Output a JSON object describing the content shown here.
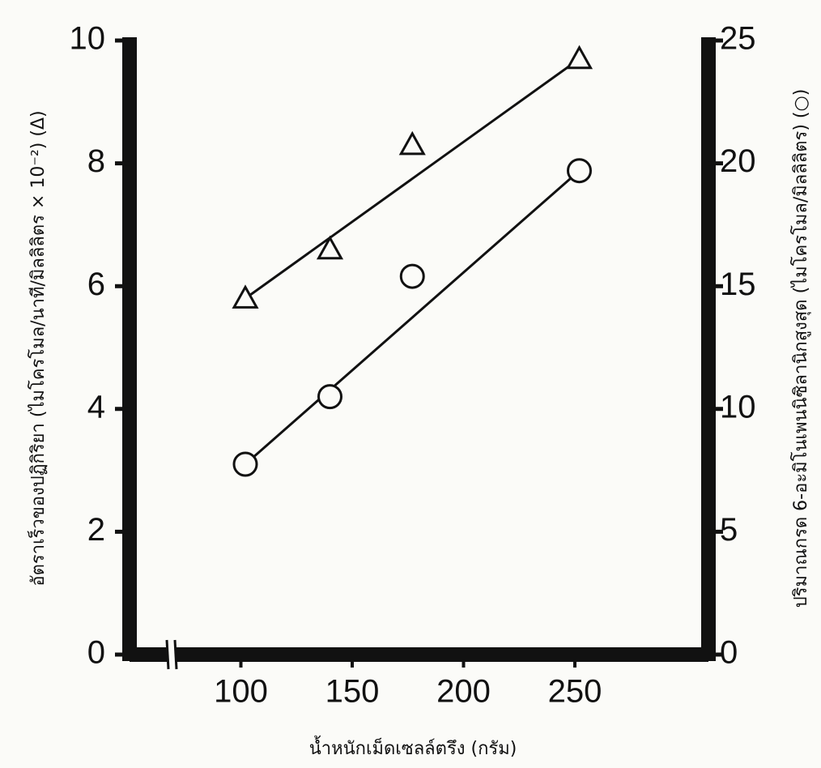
{
  "chart_data": {
    "type": "scatter",
    "x_label": "น้ำหนักเม็ดเซลล์ตรึง (กรัม)",
    "y_label": "อัตราเร็วของปฏิกิริยา (ไมโครโมล/นาที/มิลลิลิตร × 10⁻²) (Δ)",
    "y2_label": "ปริมาณกรด 6-อะมิโนเพนนิซิลานิกสูงสุด (ไมโครโมล/มิลลิลิตร) (○)",
    "xlim": [
      50,
      310
    ],
    "xticks": [
      100,
      150,
      200,
      250
    ],
    "ylim": [
      0,
      10
    ],
    "yticks": [
      0,
      2,
      4,
      6,
      8,
      10
    ],
    "y2lim": [
      0,
      25
    ],
    "y2ticks": [
      0,
      5,
      10,
      15,
      20,
      25
    ],
    "axis_break": true,
    "fit_line": true,
    "series": [
      {
        "marker": "triangle",
        "color": "#111111",
        "x": [
          102,
          140,
          177,
          252
        ],
        "values": [
          5.8,
          6.6,
          8.3,
          9.7
        ]
      },
      {
        "marker": "circle",
        "color": "#111111",
        "axis": "y2",
        "x": [
          102,
          140,
          177,
          252
        ],
        "values": [
          7.75,
          10.5,
          15.4,
          19.7
        ]
      }
    ]
  }
}
